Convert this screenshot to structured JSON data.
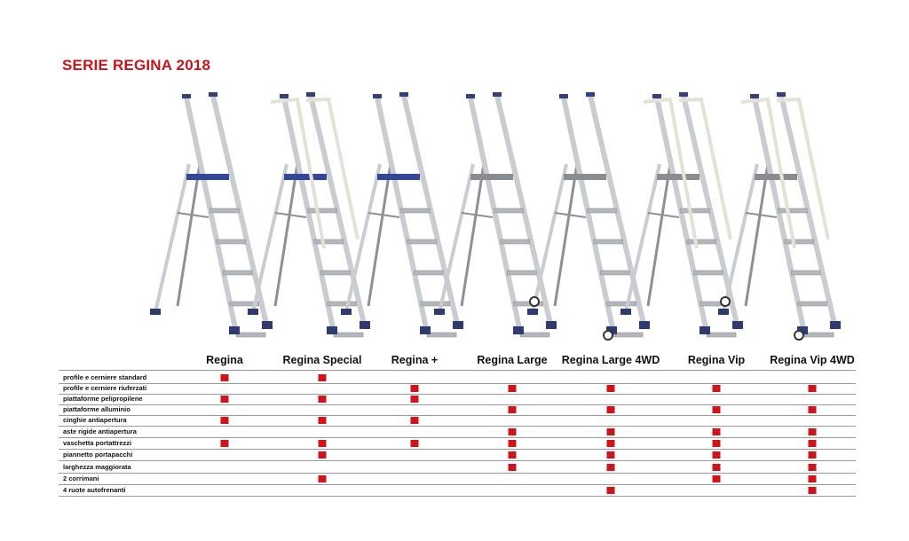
{
  "title": "SERIE REGINA 2018",
  "colors": {
    "title": "#c4161c",
    "mark": "#d0141c",
    "blue_platform": "#34459a",
    "gray_platform": "#8a8d90"
  },
  "models": [
    {
      "name": "Regina",
      "platform": "blue",
      "handrails": false,
      "wheels": false
    },
    {
      "name": "Regina Special",
      "platform": "blue",
      "handrails": true,
      "wheels": false
    },
    {
      "name": "Regina +",
      "platform": "blue",
      "handrails": false,
      "wheels": false
    },
    {
      "name": "Regina Large",
      "platform": "gray",
      "handrails": false,
      "wheels": false
    },
    {
      "name": "Regina Large 4WD",
      "platform": "gray",
      "handrails": false,
      "wheels": true
    },
    {
      "name": "Regina Vip",
      "platform": "gray",
      "handrails": true,
      "wheels": false
    },
    {
      "name": "Regina Vip 4WD",
      "platform": "gray",
      "handrails": true,
      "wheels": true
    }
  ],
  "features": [
    {
      "label": "profile e cerniere standard",
      "models": [
        0,
        1
      ]
    },
    {
      "label": "profile e cerniere riuferzati",
      "models": [
        2,
        3,
        4,
        5,
        6
      ]
    },
    {
      "label": "piattaforme pelipropilene",
      "models": [
        0,
        1,
        2
      ]
    },
    {
      "label": "piattaforme alluminio",
      "models": [
        3,
        4,
        5,
        6
      ]
    },
    {
      "label": "cinghie antiapertura",
      "models": [
        0,
        1,
        2
      ]
    },
    {
      "label": "aste rigide antiapertura",
      "models": [
        3,
        4,
        5,
        6
      ]
    },
    {
      "label": "vaschetta portattrezzi",
      "models": [
        0,
        1,
        2,
        3,
        4,
        5,
        6
      ]
    },
    {
      "label": "piannetto portapacchi",
      "models": [
        1,
        3,
        4,
        5,
        6
      ]
    },
    {
      "label": "larghezza maggiorata",
      "models": [
        3,
        4,
        5,
        6
      ]
    },
    {
      "label": "2 corrimani",
      "models": [
        1,
        5,
        6
      ]
    },
    {
      "label": "4 ruote autofrenanti",
      "models": [
        4,
        6
      ]
    }
  ]
}
